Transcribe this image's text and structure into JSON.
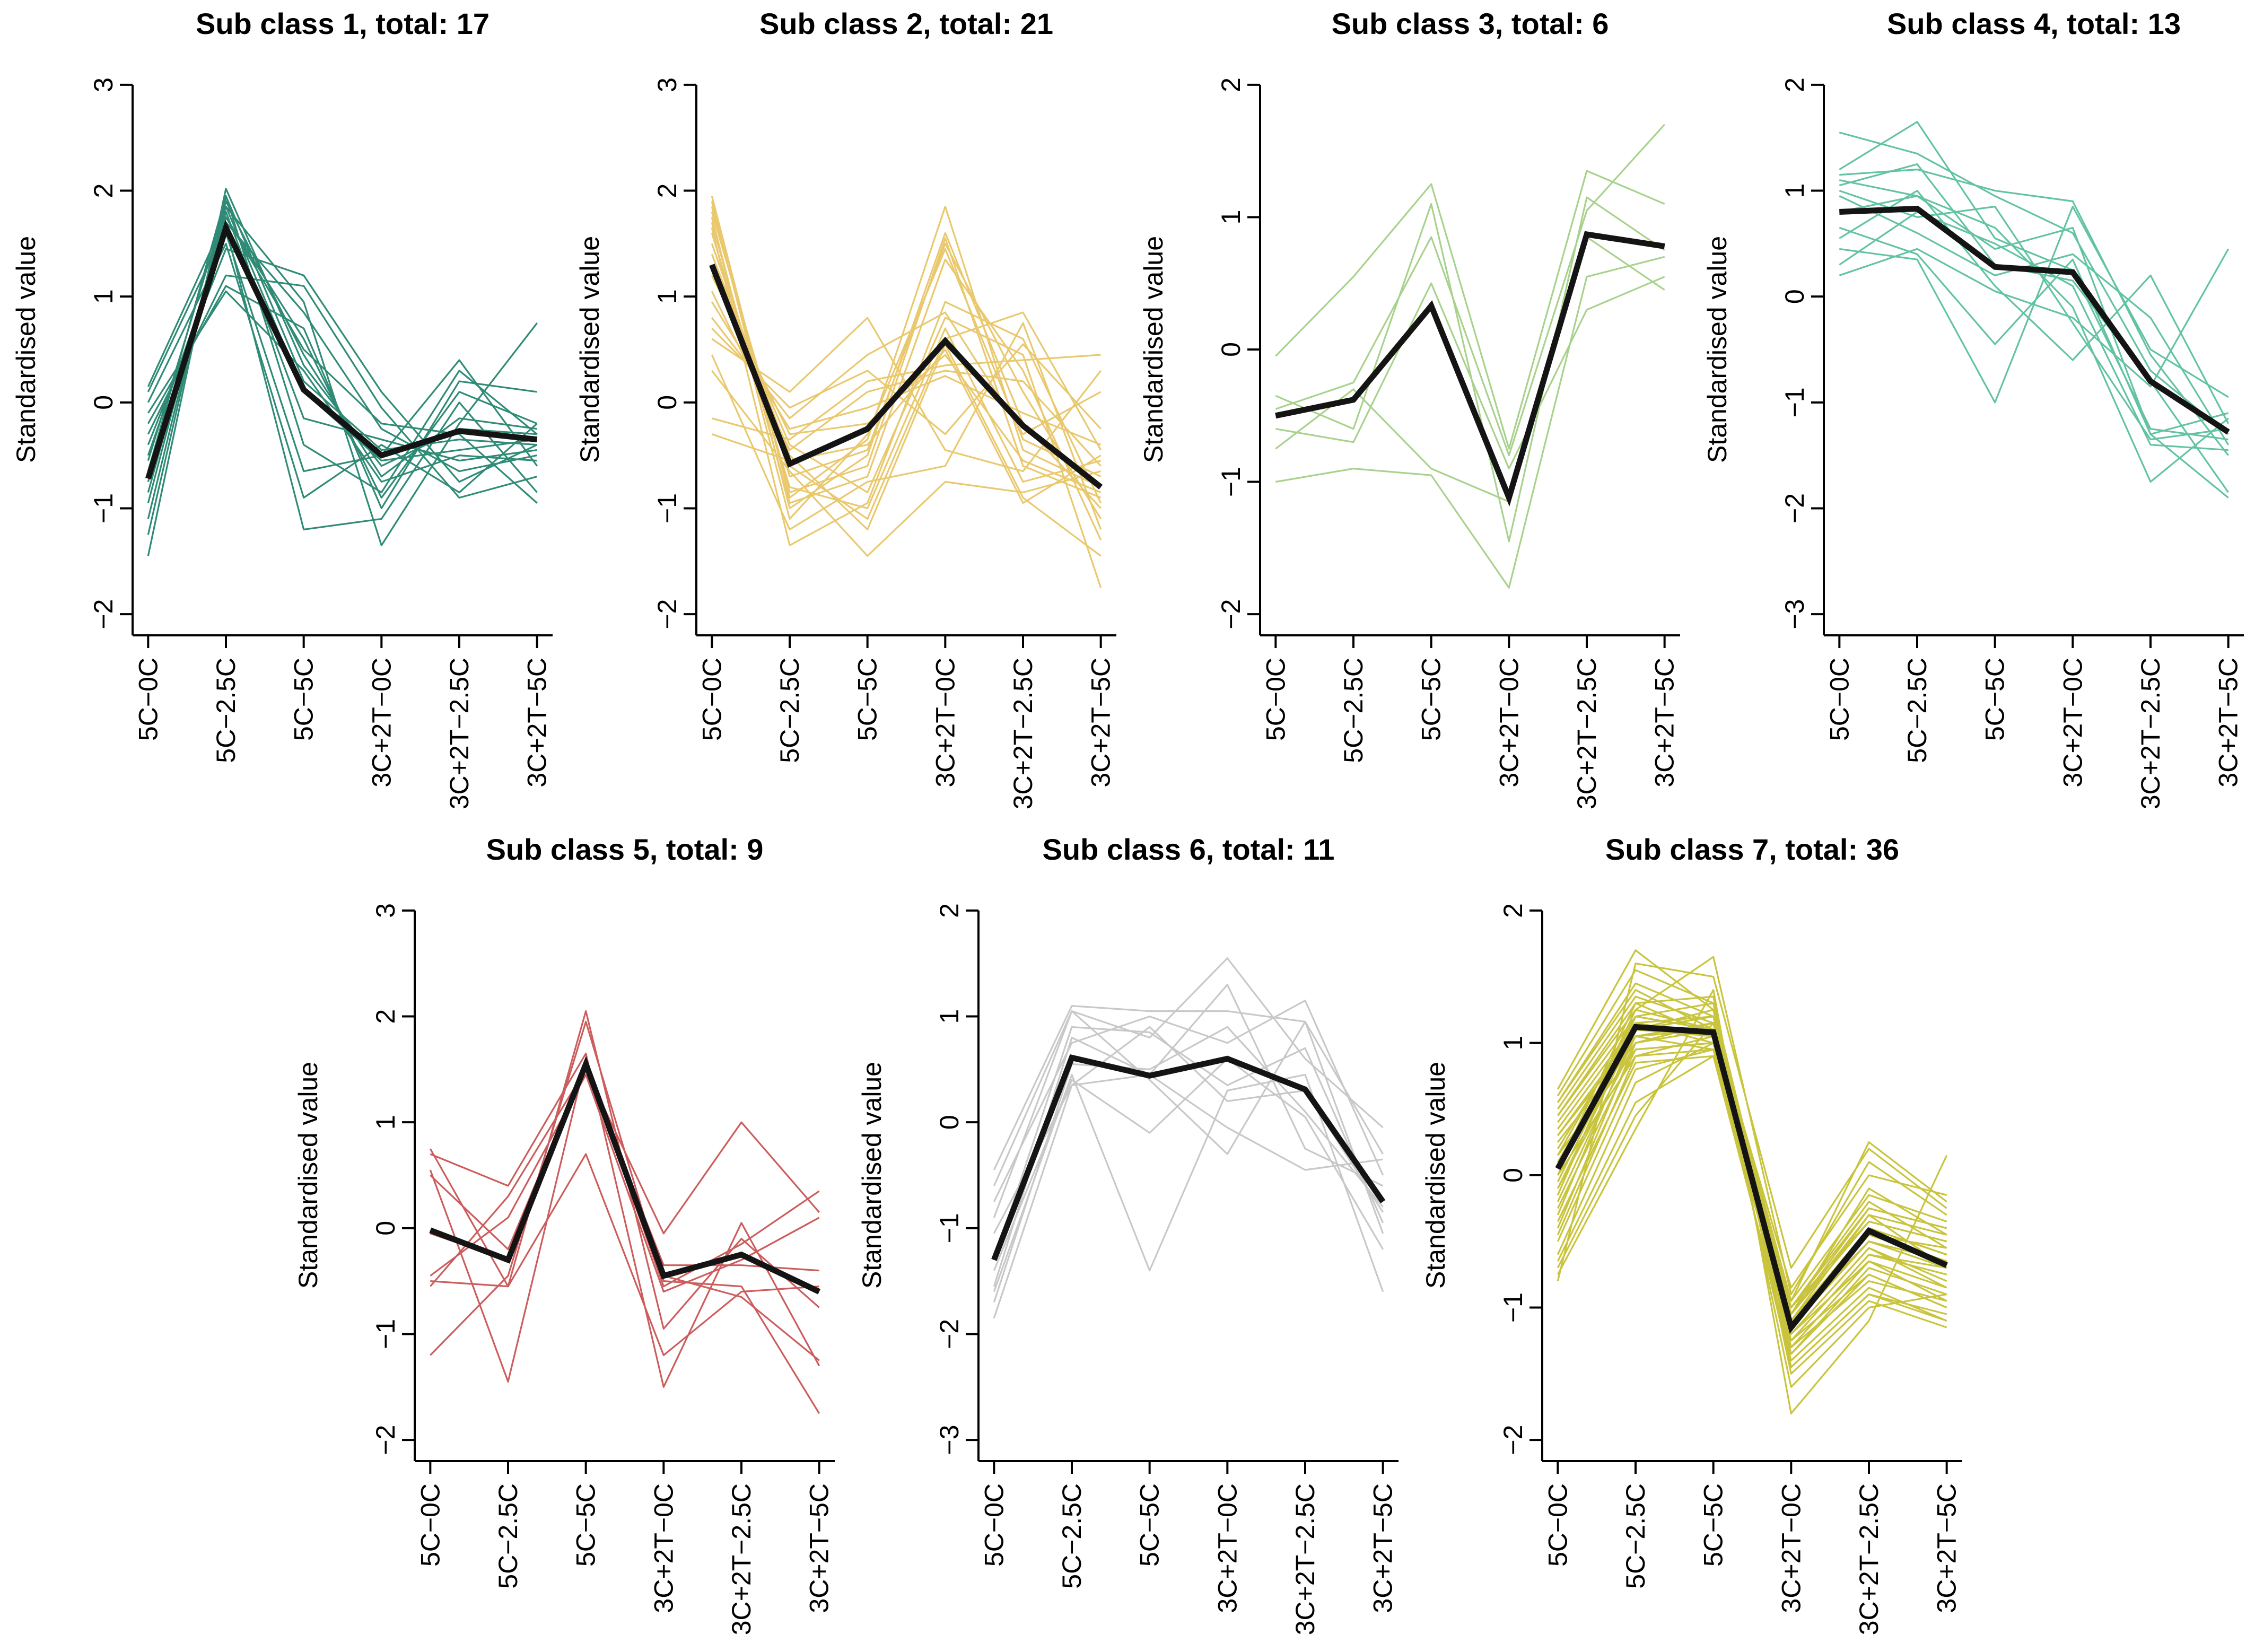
{
  "figure": {
    "ylabel": "Standardised value",
    "background_color": "#ffffff",
    "axis_color": "#000000",
    "mean_line_color": "#141414",
    "categories": [
      "5C−0C",
      "5C−2.5C",
      "5C−5C",
      "3C+2T−0C",
      "3C+2T−2.5C",
      "3C+2T−5C"
    ]
  },
  "chart_data": [
    {
      "type": "line",
      "title": "Sub class 1, total: 17",
      "subclass": 1,
      "total": 17,
      "color": "#2f8b76",
      "ylim": [
        -2,
        3
      ],
      "yticks": [
        -2,
        -1,
        0,
        1,
        2,
        3
      ],
      "ytick_labels": [
        "−2",
        "−1",
        "0",
        "1",
        "2",
        "3"
      ],
      "legend": "none",
      "grid": false,
      "mean": [
        -0.72,
        1.65,
        0.12,
        -0.5,
        -0.27,
        -0.35
      ],
      "members": [
        [
          -1.45,
          2.02,
          0.35,
          -0.6,
          -0.25,
          -0.3
        ],
        [
          -1.25,
          1.95,
          0.2,
          -0.45,
          -0.35,
          -0.4
        ],
        [
          -1.1,
          1.9,
          0.45,
          -0.7,
          -0.15,
          -0.25
        ],
        [
          -0.95,
          1.85,
          0.1,
          -0.55,
          -0.45,
          -0.35
        ],
        [
          -0.85,
          1.8,
          -0.15,
          -0.35,
          -0.55,
          -0.45
        ],
        [
          -0.75,
          1.75,
          0.6,
          -0.9,
          0.1,
          -0.2
        ],
        [
          -0.7,
          1.7,
          0.85,
          -0.25,
          -0.65,
          -0.5
        ],
        [
          -0.65,
          1.95,
          -0.4,
          -0.85,
          0.3,
          -0.3
        ],
        [
          -0.55,
          1.85,
          0.95,
          -1.35,
          -0.2,
          0.75
        ],
        [
          -0.5,
          1.6,
          -0.65,
          -0.5,
          0.4,
          -0.6
        ],
        [
          -0.4,
          1.45,
          1.2,
          0.1,
          -0.75,
          -0.4
        ],
        [
          -0.3,
          1.2,
          1.1,
          -0.05,
          -0.9,
          -0.7
        ],
        [
          -0.2,
          1.1,
          0.7,
          -1.0,
          0.2,
          0.1
        ],
        [
          -0.1,
          1.05,
          0.3,
          -0.75,
          -0.5,
          -0.55
        ],
        [
          0.0,
          1.5,
          -0.9,
          -0.4,
          -0.85,
          -0.2
        ],
        [
          0.1,
          1.65,
          -1.2,
          -1.1,
          0.0,
          -0.85
        ],
        [
          0.15,
          1.75,
          0.5,
          -0.2,
          -0.3,
          -0.95
        ]
      ]
    },
    {
      "type": "line",
      "title": "Sub class 2, total: 21",
      "subclass": 2,
      "total": 21,
      "color": "#e9c86e",
      "ylim": [
        -2,
        3
      ],
      "yticks": [
        -2,
        -1,
        0,
        1,
        2,
        3
      ],
      "ytick_labels": [
        "−2",
        "−1",
        "0",
        "1",
        "2",
        "3"
      ],
      "legend": "none",
      "grid": false,
      "mean": [
        1.3,
        -0.58,
        -0.25,
        0.58,
        -0.22,
        -0.8
      ],
      "members": [
        [
          1.95,
          -0.9,
          -0.35,
          1.85,
          -0.45,
          -0.8
        ],
        [
          1.9,
          -1.0,
          -0.5,
          1.6,
          -0.2,
          -1.0
        ],
        [
          1.85,
          -0.85,
          -0.6,
          1.55,
          -0.6,
          -0.9
        ],
        [
          1.8,
          -0.7,
          -0.45,
          1.5,
          0.1,
          -1.1
        ],
        [
          1.75,
          -1.1,
          -0.3,
          1.45,
          -0.35,
          -0.7
        ],
        [
          1.7,
          -0.95,
          -0.7,
          1.35,
          0.3,
          -1.3
        ],
        [
          1.65,
          -1.35,
          -0.95,
          0.95,
          0.6,
          -0.95
        ],
        [
          1.6,
          -0.8,
          -1.0,
          0.7,
          -0.75,
          -0.55
        ],
        [
          1.5,
          -0.6,
          -1.1,
          0.6,
          0.85,
          -0.45
        ],
        [
          1.4,
          -0.5,
          -1.2,
          0.55,
          -0.9,
          -1.45
        ],
        [
          1.3,
          -0.4,
          -0.85,
          0.8,
          0.45,
          -1.75
        ],
        [
          1.2,
          -0.3,
          -0.2,
          0.45,
          -0.55,
          -0.85
        ],
        [
          1.05,
          -0.45,
          0.1,
          0.3,
          0.2,
          -0.6
        ],
        [
          0.95,
          -0.25,
          -0.05,
          0.25,
          -0.1,
          -0.4
        ],
        [
          0.8,
          -0.15,
          0.45,
          0.85,
          -0.3,
          0.1
        ],
        [
          0.7,
          -0.05,
          0.3,
          -0.3,
          0.55,
          -0.25
        ],
        [
          0.6,
          0.1,
          0.8,
          -0.45,
          -0.65,
          0.3
        ],
        [
          0.45,
          -1.2,
          -0.75,
          -0.6,
          0.75,
          -1.2
        ],
        [
          0.3,
          -0.65,
          -1.45,
          -0.75,
          -0.85,
          -0.65
        ],
        [
          -0.15,
          -0.35,
          0.2,
          0.35,
          0.4,
          0.45
        ],
        [
          -0.3,
          -0.55,
          -0.4,
          0.5,
          -0.95,
          -0.5
        ]
      ]
    },
    {
      "type": "line",
      "title": "Sub class 3, total: 6",
      "subclass": 3,
      "total": 6,
      "color": "#a8d28c",
      "ylim": [
        -2,
        2
      ],
      "yticks": [
        -2,
        -1,
        0,
        1,
        2
      ],
      "ytick_labels": [
        "−2",
        "−1",
        "0",
        "1",
        "2"
      ],
      "legend": "none",
      "grid": false,
      "mean": [
        -0.5,
        -0.38,
        0.33,
        -1.12,
        0.87,
        0.78
      ],
      "members": [
        [
          -0.05,
          0.55,
          1.25,
          -0.75,
          1.35,
          1.1
        ],
        [
          -0.35,
          -0.6,
          1.1,
          -1.45,
          1.15,
          0.75
        ],
        [
          -0.45,
          -0.25,
          0.85,
          -0.8,
          1.05,
          1.7
        ],
        [
          -0.6,
          -0.7,
          0.5,
          -0.9,
          0.3,
          0.55
        ],
        [
          -0.75,
          -0.3,
          -0.9,
          -1.15,
          0.85,
          0.45
        ],
        [
          -1.0,
          -0.9,
          -0.95,
          -1.8,
          0.55,
          0.7
        ]
      ]
    },
    {
      "type": "line",
      "title": "Sub class 4, total: 13",
      "subclass": 4,
      "total": 13,
      "color": "#62c3a1",
      "ylim": [
        -3,
        2
      ],
      "yticks": [
        -3,
        -2,
        -1,
        0,
        1,
        2
      ],
      "ytick_labels": [
        "−3",
        "−2",
        "−1",
        "0",
        "1",
        "2"
      ],
      "legend": "none",
      "grid": false,
      "mean": [
        0.8,
        0.83,
        0.28,
        0.23,
        -0.8,
        -1.28
      ],
      "members": [
        [
          1.55,
          1.35,
          0.95,
          0.6,
          -0.7,
          -1.3
        ],
        [
          1.2,
          1.65,
          0.55,
          0.25,
          -1.25,
          -1.35
        ],
        [
          1.15,
          1.2,
          1.0,
          0.9,
          -0.55,
          -1.5
        ],
        [
          1.1,
          0.95,
          0.45,
          0.65,
          -1.3,
          -1.1
        ],
        [
          1.05,
          1.25,
          0.3,
          0.15,
          -0.8,
          -1.85
        ],
        [
          1.0,
          0.75,
          0.85,
          -0.25,
          -1.35,
          -1.25
        ],
        [
          0.95,
          0.6,
          0.2,
          0.4,
          -0.2,
          -1.4
        ],
        [
          0.8,
          0.95,
          0.65,
          -0.1,
          -1.75,
          -1.15
        ],
        [
          0.65,
          0.4,
          -0.45,
          0.35,
          -1.3,
          -1.9
        ],
        [
          0.55,
          1.0,
          0.1,
          -0.6,
          0.2,
          -1.2
        ],
        [
          0.45,
          0.35,
          -1.0,
          0.85,
          -0.5,
          -0.95
        ],
        [
          0.3,
          0.8,
          0.5,
          0.1,
          -1.4,
          -1.45
        ],
        [
          0.2,
          0.45,
          0.05,
          -0.2,
          -0.85,
          0.45
        ]
      ]
    },
    {
      "type": "line",
      "title": "Sub class 5, total: 9",
      "subclass": 5,
      "total": 9,
      "color": "#cd5c5c",
      "ylim": [
        -2,
        3
      ],
      "yticks": [
        -2,
        -1,
        0,
        1,
        2,
        3
      ],
      "ytick_labels": [
        "−2",
        "−1",
        "0",
        "1",
        "2",
        "3"
      ],
      "legend": "none",
      "grid": false,
      "mean": [
        -0.02,
        -0.3,
        1.55,
        -0.45,
        -0.25,
        -0.6
      ],
      "members": [
        [
          0.75,
          -0.55,
          2.05,
          -0.95,
          -0.1,
          -0.75
        ],
        [
          0.7,
          0.4,
          1.65,
          -1.5,
          0.05,
          -1.3
        ],
        [
          0.55,
          -1.45,
          1.6,
          -0.45,
          -0.65,
          -1.25
        ],
        [
          0.5,
          -0.2,
          1.55,
          -0.55,
          -0.15,
          0.35
        ],
        [
          -0.05,
          -0.3,
          1.5,
          -0.05,
          1.0,
          0.15
        ],
        [
          -0.45,
          0.1,
          1.45,
          -0.6,
          -0.3,
          0.1
        ],
        [
          -0.5,
          -0.55,
          0.7,
          -1.2,
          -0.6,
          -0.55
        ],
        [
          -0.55,
          0.3,
          1.5,
          -0.35,
          -0.35,
          -0.4
        ],
        [
          -1.2,
          -0.45,
          1.95,
          -0.5,
          -0.55,
          -1.75
        ]
      ]
    },
    {
      "type": "line",
      "title": "Sub class 6, total: 11",
      "subclass": 6,
      "total": 11,
      "color": "#c8c8c8",
      "ylim": [
        -3,
        2
      ],
      "yticks": [
        -3,
        -2,
        -1,
        0,
        1,
        2
      ],
      "ytick_labels": [
        "−3",
        "−2",
        "−1",
        "0",
        "1",
        "2"
      ],
      "legend": "none",
      "grid": false,
      "mean": [
        -1.3,
        0.61,
        0.44,
        0.6,
        0.31,
        -0.75
      ],
      "members": [
        [
          -0.45,
          1.1,
          1.05,
          1.05,
          0.95,
          -0.3
        ],
        [
          -0.6,
          1.05,
          0.8,
          1.55,
          0.6,
          -0.05
        ],
        [
          -0.75,
          0.75,
          1.0,
          0.75,
          1.15,
          -0.5
        ],
        [
          -0.9,
          1.05,
          0.4,
          -0.3,
          0.95,
          -1.05
        ],
        [
          -1.05,
          0.35,
          0.45,
          1.3,
          -0.25,
          -0.6
        ],
        [
          -1.3,
          0.9,
          0.85,
          0.35,
          0.7,
          -0.95
        ],
        [
          -1.4,
          0.4,
          -0.1,
          0.6,
          0.05,
          -1.2
        ],
        [
          -1.55,
          0.8,
          0.45,
          -0.05,
          -0.45,
          -0.35
        ],
        [
          -1.6,
          0.45,
          -1.4,
          0.3,
          0.45,
          -1.6
        ],
        [
          -1.7,
          0.55,
          0.5,
          0.9,
          0.1,
          -0.8
        ],
        [
          -1.85,
          0.35,
          0.9,
          0.2,
          0.3,
          -0.85
        ]
      ]
    },
    {
      "type": "line",
      "title": "Sub class 7, total: 36",
      "subclass": 7,
      "total": 36,
      "color": "#c9c43d",
      "ylim": [
        -2,
        2
      ],
      "yticks": [
        -2,
        -1,
        0,
        1,
        2
      ],
      "ytick_labels": [
        "−2",
        "−1",
        "0",
        "1",
        "2"
      ],
      "legend": "none",
      "grid": false,
      "mean": [
        0.05,
        1.12,
        1.08,
        -1.15,
        -0.42,
        -0.68
      ],
      "members": [
        [
          0.65,
          1.7,
          1.25,
          -1.05,
          -0.1,
          -0.45
        ],
        [
          0.6,
          1.55,
          1.3,
          -1.1,
          -0.3,
          -0.7
        ],
        [
          0.55,
          1.45,
          1.2,
          -0.95,
          0.25,
          -0.2
        ],
        [
          0.55,
          1.4,
          1.1,
          -1.2,
          -0.55,
          -0.85
        ],
        [
          0.5,
          1.35,
          1.15,
          -1.0,
          -0.2,
          -0.55
        ],
        [
          0.45,
          1.3,
          1.05,
          -1.3,
          -0.65,
          -0.95
        ],
        [
          0.45,
          1.25,
          1.65,
          -0.9,
          0.1,
          -0.3
        ],
        [
          0.4,
          1.2,
          1.1,
          -1.15,
          -0.4,
          -0.6
        ],
        [
          0.35,
          1.15,
          1.0,
          -1.25,
          -0.75,
          -1.0
        ],
        [
          0.3,
          1.1,
          1.2,
          -1.05,
          -0.25,
          -0.4
        ],
        [
          0.3,
          1.05,
          0.95,
          -1.4,
          -0.85,
          -1.1
        ],
        [
          0.25,
          1.0,
          1.15,
          -0.85,
          0.0,
          -0.15
        ],
        [
          0.2,
          1.15,
          1.05,
          -1.1,
          -0.45,
          -0.65
        ],
        [
          0.15,
          1.2,
          1.1,
          -1.2,
          -0.55,
          -0.8
        ],
        [
          0.15,
          0.95,
          1.0,
          -1.0,
          -0.35,
          -0.5
        ],
        [
          0.1,
          1.1,
          1.25,
          -1.35,
          -0.7,
          -0.9
        ],
        [
          0.05,
          1.05,
          1.15,
          -1.15,
          -0.5,
          -0.7
        ],
        [
          0.05,
          1.3,
          1.35,
          -1.45,
          -0.9,
          -1.05
        ],
        [
          0.0,
          1.25,
          1.1,
          -1.05,
          -0.3,
          -0.45
        ],
        [
          0.0,
          0.9,
          0.95,
          -1.25,
          -0.6,
          -0.75
        ],
        [
          -0.05,
          1.15,
          1.2,
          -0.95,
          -0.15,
          -0.35
        ],
        [
          -0.1,
          1.1,
          1.05,
          -1.3,
          -0.8,
          -0.95
        ],
        [
          -0.1,
          1.0,
          1.15,
          -1.1,
          -0.4,
          -0.6
        ],
        [
          -0.15,
          1.2,
          1.3,
          -1.5,
          -0.95,
          -1.15
        ],
        [
          -0.2,
          1.05,
          1.1,
          -1.0,
          -0.25,
          -0.4
        ],
        [
          -0.25,
          0.95,
          1.0,
          -1.2,
          -0.65,
          -0.85
        ],
        [
          -0.3,
          1.1,
          1.2,
          -1.15,
          -0.45,
          -0.55
        ],
        [
          -0.35,
          0.85,
          0.9,
          -1.35,
          -0.75,
          -1.0
        ],
        [
          -0.4,
          1.0,
          1.1,
          -1.05,
          -0.35,
          -0.5
        ],
        [
          -0.45,
          0.9,
          1.05,
          -1.25,
          -0.6,
          -0.7
        ],
        [
          -0.5,
          0.8,
          0.95,
          -1.1,
          -0.5,
          -0.65
        ],
        [
          -0.6,
          0.7,
          1.0,
          -1.45,
          -0.9,
          -1.1
        ],
        [
          -0.65,
          0.55,
          0.9,
          -1.15,
          -0.4,
          -0.6
        ],
        [
          -0.7,
          0.45,
          1.15,
          -1.6,
          -1.0,
          -0.9
        ],
        [
          -0.75,
          0.35,
          1.4,
          -1.8,
          -1.1,
          0.15
        ],
        [
          -0.8,
          1.6,
          1.5,
          -0.7,
          0.2,
          -0.25
        ]
      ]
    }
  ]
}
